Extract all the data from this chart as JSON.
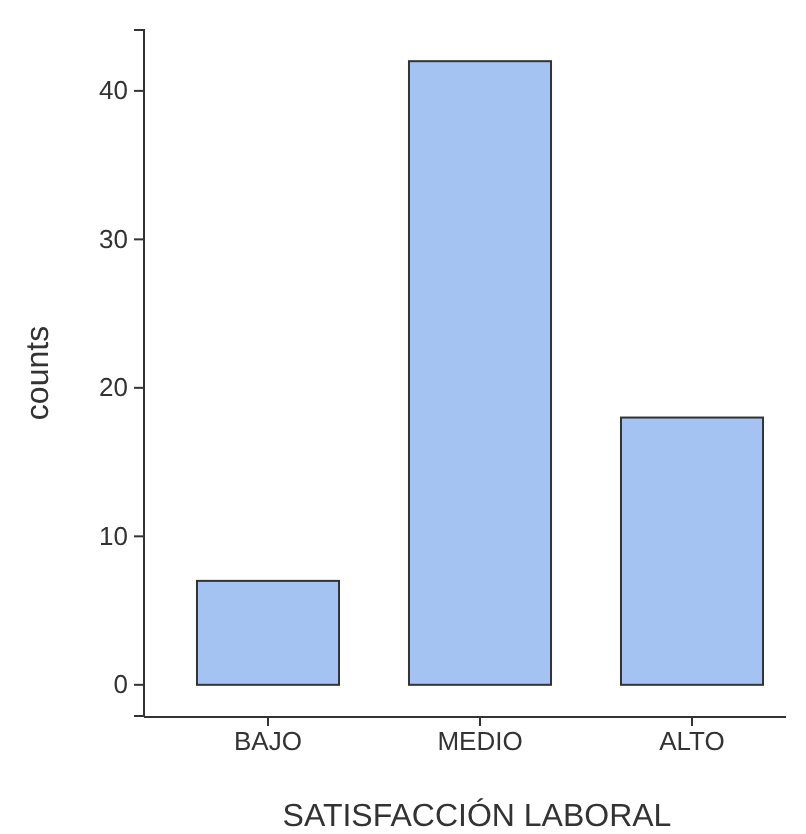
{
  "chart_data": {
    "type": "bar",
    "xlabel": "SATISFACCIÓN LABORAL",
    "ylabel": "counts",
    "categories": [
      "BAJO",
      "MEDIO",
      "ALTO"
    ],
    "values": [
      7,
      42,
      18
    ],
    "color": "#a4c3f2",
    "ylim": [
      -2.1,
      44.1
    ],
    "yticks": [
      0,
      10,
      20,
      30,
      40
    ],
    "grid": false
  }
}
